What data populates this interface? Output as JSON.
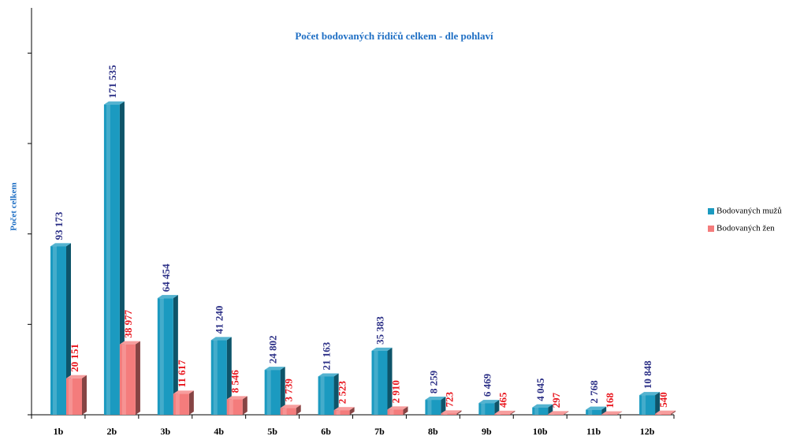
{
  "chart_data": {
    "type": "bar",
    "title": "Počet bodovaných řidičů celkem - dle pohlaví",
    "y_label": "Počet celkem",
    "categories": [
      "1b",
      "2b",
      "3b",
      "4b",
      "5b",
      "6b",
      "7b",
      "8b",
      "9b",
      "10b",
      "11b",
      "12b"
    ],
    "series": [
      {
        "name": "Bodovaných mužů",
        "color": "#1b9ac0",
        "label_color": "#2b2f86",
        "values": [
          93173,
          171535,
          64454,
          41240,
          24802,
          21163,
          35383,
          8259,
          6469,
          4045,
          2768,
          10848
        ],
        "value_labels": [
          "93 173",
          "171 535",
          "64 454",
          "41 240",
          "24 802",
          "21 163",
          "35 383",
          "8 259",
          "6 469",
          "4 045",
          "2 768",
          "10 848"
        ]
      },
      {
        "name": "Bodovaných žen",
        "color": "#f47c7c",
        "label_color": "#e8141c",
        "values": [
          20151,
          38977,
          11617,
          8546,
          3739,
          2523,
          2910,
          723,
          465,
          297,
          168,
          540
        ],
        "value_labels": [
          "20 151",
          "38 977",
          "11 617",
          "8 546",
          "3 739",
          "2 523",
          "2 910",
          "723",
          "465",
          "297",
          "168",
          "540"
        ]
      }
    ],
    "ylim": [
      0,
      225000
    ],
    "yticks": [
      0,
      50000,
      100000,
      150000,
      200000
    ],
    "legend": "right"
  }
}
